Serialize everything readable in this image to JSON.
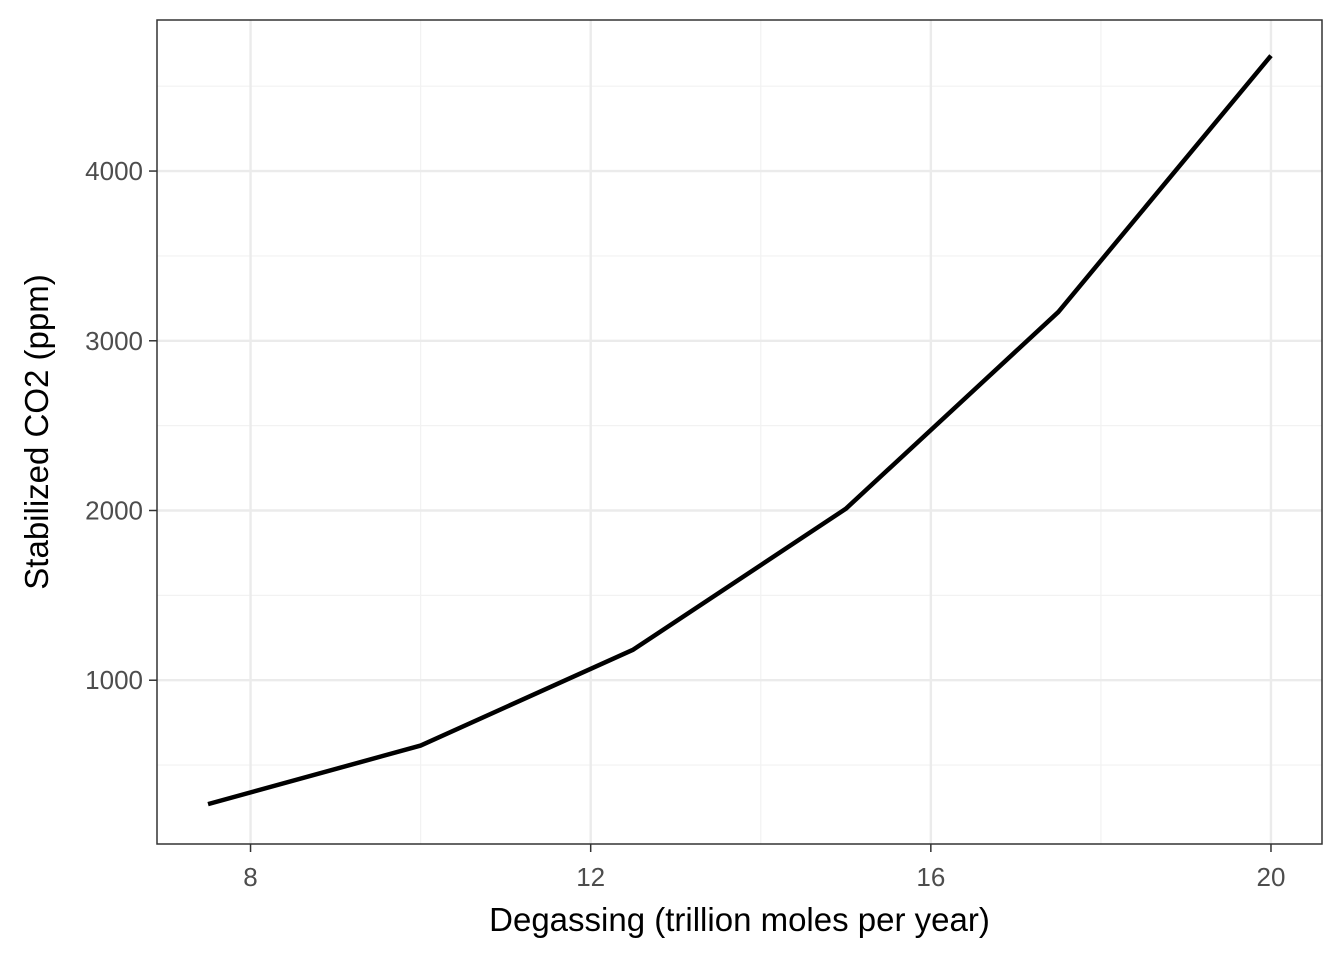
{
  "chart_data": {
    "type": "line",
    "title": "",
    "xlabel": "Degassing (trillion moles per year)",
    "ylabel": "Stabilized CO2 (ppm)",
    "xlim": [
      6.9,
      20.6
    ],
    "ylim": [
      35,
      4890
    ],
    "x_ticks": [
      8,
      12,
      16,
      20
    ],
    "y_ticks": [
      1000,
      2000,
      3000,
      4000
    ],
    "x_tick_labels": [
      "8",
      "12",
      "16",
      "20"
    ],
    "y_tick_labels": [
      "1000",
      "2000",
      "3000",
      "4000"
    ],
    "grid": true,
    "legend": "none",
    "series": [
      {
        "color": "#000000",
        "points": [
          {
            "x": 7.5,
            "y": 270
          },
          {
            "x": 10,
            "y": 615
          },
          {
            "x": 12.5,
            "y": 1180
          },
          {
            "x": 15,
            "y": 2010
          },
          {
            "x": 17.5,
            "y": 3170
          },
          {
            "x": 20,
            "y": 4680
          }
        ]
      }
    ],
    "colors": {
      "panel_background": "#ffffff",
      "grid_major": "#ebebeb",
      "grid_minor": "#f2f2f2",
      "panel_border": "#333333",
      "tick_text": "#4d4d4d",
      "axis_title": "#000000"
    }
  }
}
